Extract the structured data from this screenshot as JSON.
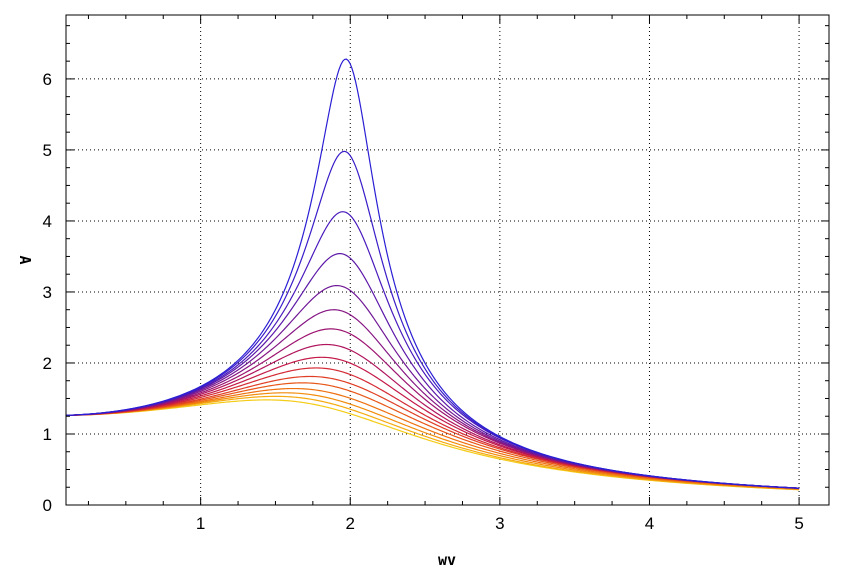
{
  "chart_data": {
    "type": "line",
    "title": "",
    "xlabel": "wv",
    "ylabel": "A",
    "xlim": [
      0.1,
      5.2
    ],
    "ylim": [
      0,
      6.9
    ],
    "x_ticks": [
      1,
      2,
      3,
      4,
      5
    ],
    "x_tick_labels": [
      "1",
      "2",
      "3",
      "4",
      "5"
    ],
    "y_ticks": [
      0,
      1,
      2,
      3,
      4,
      5,
      6
    ],
    "y_tick_labels": [
      "0",
      "1",
      "2",
      "3",
      "4",
      "5",
      "6"
    ],
    "grid": true,
    "legend": "none",
    "family": {
      "description": "resonance curves A(wv) for a range of damping values",
      "x_start": 0.1,
      "x_end": 5.0,
      "n_curves": 16,
      "y_at_start": 1.26,
      "y_at_end": 0.25,
      "peaks": [
        {
          "x": 1.97,
          "y": 6.28,
          "color": "#2a1fd4"
        },
        {
          "x": 1.96,
          "y": 4.98,
          "color": "#3a1dc8"
        },
        {
          "x": 1.95,
          "y": 4.13,
          "color": "#4a1bbc"
        },
        {
          "x": 1.93,
          "y": 3.54,
          "color": "#5c19a8"
        },
        {
          "x": 1.91,
          "y": 3.09,
          "color": "#701896"
        },
        {
          "x": 1.89,
          "y": 2.75,
          "color": "#861684"
        },
        {
          "x": 1.87,
          "y": 2.48,
          "color": "#9c1470"
        },
        {
          "x": 1.84,
          "y": 2.26,
          "color": "#b0145c"
        },
        {
          "x": 1.81,
          "y": 2.08,
          "color": "#c41a48"
        },
        {
          "x": 1.77,
          "y": 1.93,
          "color": "#d42a34"
        },
        {
          "x": 1.73,
          "y": 1.81,
          "color": "#e03e24"
        },
        {
          "x": 1.68,
          "y": 1.72,
          "color": "#e85618"
        },
        {
          "x": 1.62,
          "y": 1.64,
          "color": "#ee7010"
        },
        {
          "x": 1.56,
          "y": 1.58,
          "color": "#f28c0c"
        },
        {
          "x": 1.5,
          "y": 1.53,
          "color": "#f4aa10"
        },
        {
          "x": 1.44,
          "y": 1.48,
          "color": "#f4cc18"
        }
      ]
    }
  }
}
